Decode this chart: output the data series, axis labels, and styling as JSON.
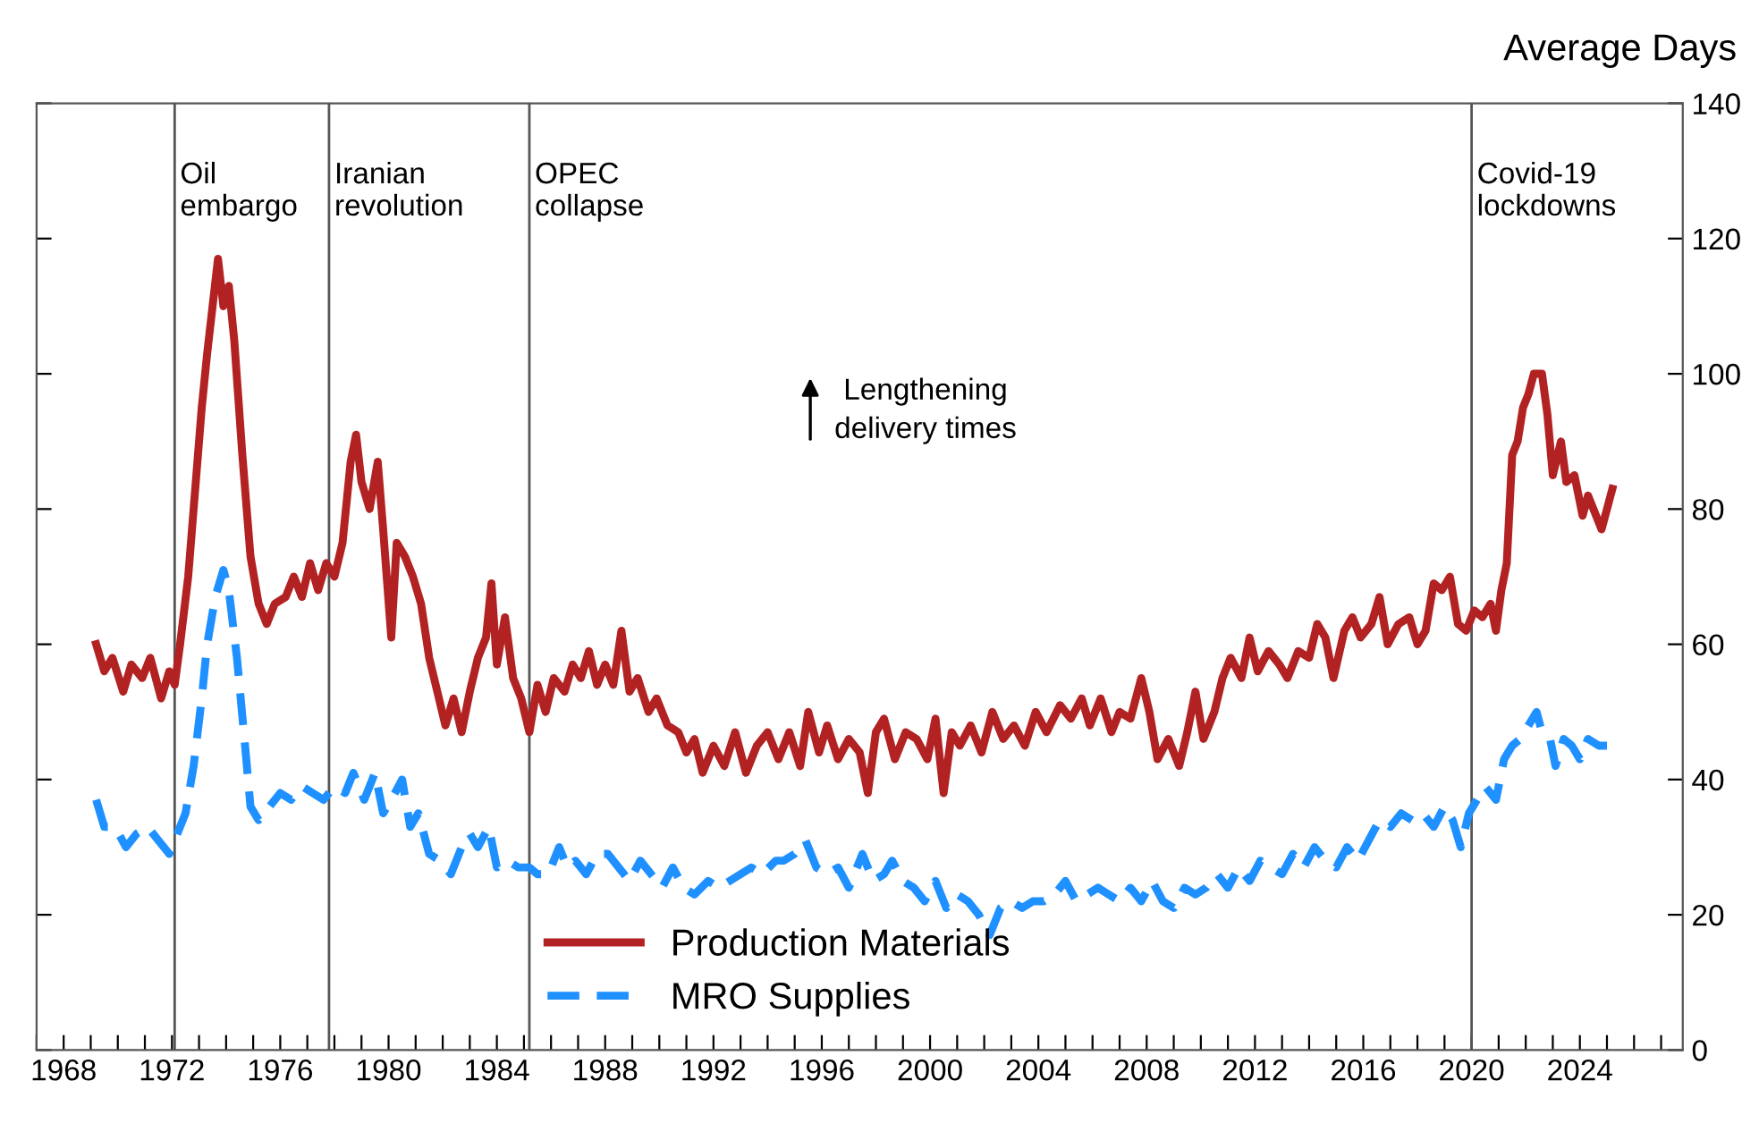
{
  "chart_data": {
    "type": "line",
    "ylabel": "Average Days",
    "xlim": [
      1967,
      2027.8
    ],
    "xticks": [
      {
        "value": 1967,
        "label": null
      },
      1968,
      {
        "value": 1969,
        "label": null
      },
      {
        "value": 1970,
        "label": null
      },
      {
        "value": 1971,
        "label": null
      },
      1972,
      {
        "value": 1973,
        "label": null
      },
      {
        "value": 1974,
        "label": null
      },
      {
        "value": 1975,
        "label": null
      },
      1976,
      {
        "value": 1977,
        "label": null
      },
      {
        "value": 1978,
        "label": null
      },
      {
        "value": 1979,
        "label": null
      },
      1980,
      {
        "value": 1981,
        "label": null
      },
      {
        "value": 1982,
        "label": null
      },
      {
        "value": 1983,
        "label": null
      },
      1984,
      {
        "value": 1985,
        "label": null
      },
      {
        "value": 1986,
        "label": null
      },
      {
        "value": 1987,
        "label": null
      },
      1988,
      {
        "value": 1989,
        "label": null
      },
      {
        "value": 1990,
        "label": null
      },
      {
        "value": 1991,
        "label": null
      },
      1992,
      {
        "value": 1993,
        "label": null
      },
      {
        "value": 1994,
        "label": null
      },
      {
        "value": 1995,
        "label": null
      },
      1996,
      {
        "value": 1997,
        "label": null
      },
      {
        "value": 1998,
        "label": null
      },
      {
        "value": 1999,
        "label": null
      },
      2000,
      {
        "value": 2001,
        "label": null
      },
      {
        "value": 2002,
        "label": null
      },
      {
        "value": 2003,
        "label": null
      },
      2004,
      {
        "value": 2005,
        "label": null
      },
      {
        "value": 2006,
        "label": null
      },
      {
        "value": 2007,
        "label": null
      },
      2008,
      {
        "value": 2009,
        "label": null
      },
      {
        "value": 2010,
        "label": null
      },
      {
        "value": 2011,
        "label": null
      },
      2012,
      {
        "value": 2013,
        "label": null
      },
      {
        "value": 2014,
        "label": null
      },
      {
        "value": 2015,
        "label": null
      },
      2016,
      {
        "value": 2017,
        "label": null
      },
      {
        "value": 2018,
        "label": null
      },
      {
        "value": 2019,
        "label": null
      },
      2020,
      {
        "value": 2021,
        "label": null
      },
      {
        "value": 2022,
        "label": null
      },
      {
        "value": 2023,
        "label": null
      },
      2024,
      {
        "value": 2025,
        "label": null
      },
      {
        "value": 2026,
        "label": null
      },
      {
        "value": 2027,
        "label": null
      }
    ],
    "ylim": [
      0,
      140
    ],
    "yticks": [
      0,
      20,
      40,
      60,
      80,
      100,
      120,
      140
    ],
    "grid": false,
    "legend": "bottom",
    "marker": "none",
    "annotations": [
      "Lengthening\ndelivery times"
    ],
    "ref_lines": [
      {
        "axis": "x",
        "value": 1972.1,
        "label": "Oil\nembargo",
        "color": "#555555"
      },
      {
        "axis": "x",
        "value": 1977.8,
        "label": "Iranian\nrevolution",
        "color": "#555555"
      },
      {
        "axis": "x",
        "value": 1985.2,
        "label": "OPEC\ncollapse",
        "color": "#555555"
      },
      {
        "axis": "x",
        "value": 2020.0,
        "label": "Covid-19\nlockdowns",
        "color": "#555555"
      }
    ],
    "series": [
      {
        "name": "Production Materials",
        "color": "#b22222",
        "line_style": "solid",
        "x": [
          1969.2,
          1969.5,
          1969.8,
          1970.2,
          1970.5,
          1970.9,
          1971.2,
          1971.6,
          1971.9,
          1972.1,
          1972.3,
          1972.6,
          1972.9,
          1973.1,
          1973.3,
          1973.5,
          1973.7,
          1973.9,
          1974.1,
          1974.3,
          1974.6,
          1974.9,
          1975.2,
          1975.5,
          1975.8,
          1976.2,
          1976.5,
          1976.8,
          1977.1,
          1977.4,
          1977.7,
          1978.0,
          1978.3,
          1978.6,
          1978.8,
          1979.0,
          1979.3,
          1979.6,
          1979.8,
          1980.1,
          1980.3,
          1980.6,
          1980.9,
          1981.2,
          1981.5,
          1981.8,
          1982.1,
          1982.4,
          1982.7,
          1983.0,
          1983.3,
          1983.6,
          1983.8,
          1984.0,
          1984.3,
          1984.6,
          1984.9,
          1985.2,
          1985.5,
          1985.8,
          1986.1,
          1986.5,
          1986.8,
          1987.1,
          1987.4,
          1987.7,
          1988.0,
          1988.3,
          1988.6,
          1988.9,
          1989.2,
          1989.6,
          1989.9,
          1990.3,
          1990.7,
          1991.0,
          1991.3,
          1991.6,
          1992.0,
          1992.4,
          1992.8,
          1993.2,
          1993.6,
          1994.0,
          1994.4,
          1994.8,
          1995.2,
          1995.5,
          1995.9,
          1996.2,
          1996.6,
          1997.0,
          1997.4,
          1997.7,
          1998.0,
          1998.3,
          1998.7,
          1999.1,
          1999.5,
          1999.9,
          2000.2,
          2000.5,
          2000.8,
          2001.1,
          2001.5,
          2001.9,
          2002.3,
          2002.7,
          2003.1,
          2003.5,
          2003.9,
          2004.3,
          2004.8,
          2005.2,
          2005.6,
          2005.9,
          2006.3,
          2006.7,
          2007.0,
          2007.4,
          2007.8,
          2008.1,
          2008.4,
          2008.8,
          2009.2,
          2009.5,
          2009.8,
          2010.1,
          2010.5,
          2010.8,
          2011.1,
          2011.5,
          2011.8,
          2012.1,
          2012.5,
          2012.9,
          2013.2,
          2013.6,
          2014.0,
          2014.3,
          2014.6,
          2014.9,
          2015.3,
          2015.6,
          2015.9,
          2016.3,
          2016.6,
          2016.9,
          2017.3,
          2017.7,
          2018.0,
          2018.3,
          2018.6,
          2018.9,
          2019.2,
          2019.5,
          2019.8,
          2020.1,
          2020.4,
          2020.7,
          2020.9,
          2021.1,
          2021.3,
          2021.5,
          2021.7,
          2021.9,
          2022.1,
          2022.3,
          2022.6,
          2022.8,
          2023.0,
          2023.3,
          2023.5,
          2023.8,
          2024.1,
          2024.3,
          2024.6,
          2024.8,
          2025.0,
          2025.2
        ],
        "values": [
          60,
          56,
          58,
          53,
          57,
          55,
          58,
          52,
          56,
          54,
          60,
          70,
          85,
          95,
          103,
          110,
          117,
          110,
          113,
          105,
          88,
          73,
          66,
          63,
          66,
          67,
          70,
          67,
          72,
          68,
          72,
          70,
          75,
          87,
          91,
          84,
          80,
          87,
          77,
          61,
          75,
          73,
          70,
          66,
          58,
          53,
          48,
          52,
          47,
          53,
          58,
          61,
          69,
          57,
          64,
          55,
          52,
          47,
          54,
          50,
          55,
          53,
          57,
          55,
          59,
          54,
          57,
          54,
          62,
          53,
          55,
          50,
          52,
          48,
          47,
          44,
          46,
          41,
          45,
          42,
          47,
          41,
          45,
          47,
          43,
          47,
          42,
          50,
          44,
          48,
          43,
          46,
          44,
          38,
          47,
          49,
          43,
          47,
          46,
          43,
          49,
          38,
          47,
          45,
          48,
          44,
          50,
          46,
          48,
          45,
          50,
          47,
          51,
          49,
          52,
          48,
          52,
          47,
          50,
          49,
          55,
          50,
          43,
          46,
          42,
          47,
          53,
          46,
          50,
          55,
          58,
          55,
          61,
          56,
          59,
          57,
          55,
          59,
          58,
          63,
          61,
          55,
          62,
          64,
          61,
          63,
          67,
          60,
          63,
          64,
          60,
          62,
          69,
          68,
          70,
          63,
          62,
          65,
          64,
          66,
          62,
          68,
          72,
          88,
          90,
          95,
          97,
          100,
          100,
          94,
          85,
          90,
          84,
          85,
          79,
          82,
          79,
          77,
          80,
          83
        ]
      },
      {
        "name": "MRO Supplies",
        "color": "#1e90ff",
        "line_style": "dashed",
        "x": [
          1969.2,
          1969.5,
          1969.9,
          1970.3,
          1970.7,
          1971.1,
          1971.5,
          1971.9,
          1972.2,
          1972.5,
          1972.8,
          1973.1,
          1973.3,
          1973.6,
          1973.9,
          1974.1,
          1974.4,
          1974.7,
          1974.9,
          1975.2,
          1975.6,
          1976.0,
          1976.4,
          1976.8,
          1977.2,
          1977.6,
          1978.0,
          1978.4,
          1978.7,
          1979.1,
          1979.5,
          1979.8,
          1980.1,
          1980.5,
          1980.8,
          1981.1,
          1981.5,
          1981.9,
          1982.3,
          1982.7,
          1983.0,
          1983.3,
          1983.7,
          1984.0,
          1984.4,
          1984.8,
          1985.2,
          1985.5,
          1985.9,
          1986.3,
          1986.6,
          1986.9,
          1987.3,
          1987.7,
          1988.1,
          1988.5,
          1988.9,
          1989.3,
          1989.7,
          1990.1,
          1990.5,
          1990.9,
          1991.3,
          1991.8,
          1992.2,
          1992.6,
          1993.0,
          1993.4,
          1993.8,
          1994.3,
          1994.6,
          1995.0,
          1995.4,
          1995.8,
          1996.2,
          1996.6,
          1997.0,
          1997.5,
          1997.9,
          1998.3,
          1998.6,
          1999.0,
          1999.4,
          1999.8,
          2000.2,
          2000.6,
          2001.0,
          2001.4,
          2001.8,
          2002.2,
          2002.6,
          2003.0,
          2003.4,
          2003.8,
          2004.2,
          2004.6,
          2005.0,
          2005.4,
          2005.8,
          2006.2,
          2006.6,
          2007.0,
          2007.4,
          2007.8,
          2008.2,
          2008.6,
          2009.0,
          2009.4,
          2009.8,
          2010.2,
          2010.6,
          2011.0,
          2011.4,
          2011.8,
          2012.2,
          2012.6,
          2013.0,
          2013.4,
          2013.8,
          2014.2,
          2014.6,
          2015.0,
          2015.4,
          2015.8,
          2016.2,
          2016.6,
          2017.0,
          2017.4,
          2017.8,
          2018.2,
          2018.6,
          2019.0,
          2019.3,
          2019.6,
          2019.9,
          2020.2,
          2020.5,
          2020.9,
          2021.2,
          2021.5,
          2021.8,
          2022.1,
          2022.4,
          2022.6,
          2022.9,
          2023.1,
          2023.4,
          2023.7,
          2024.0,
          2024.3,
          2024.7,
          2025.0
        ],
        "values": [
          37,
          33,
          33,
          30,
          32,
          33,
          31,
          29,
          32,
          35,
          42,
          52,
          60,
          67,
          71,
          68,
          58,
          45,
          36,
          34,
          36,
          38,
          37,
          39,
          38,
          37,
          39,
          38,
          41,
          37,
          41,
          35,
          37,
          40,
          33,
          35,
          29,
          28,
          26,
          30,
          32,
          30,
          33,
          27,
          28,
          27,
          27,
          26,
          26,
          30,
          27,
          28,
          26,
          29,
          29,
          27,
          25,
          28,
          26,
          24,
          27,
          24,
          23,
          25,
          24,
          25,
          26,
          27,
          26,
          28,
          28,
          29,
          31,
          27,
          26,
          27,
          24,
          29,
          25,
          26,
          28,
          25,
          24,
          22,
          25,
          21,
          23,
          22,
          20,
          17,
          21,
          22,
          21,
          22,
          22,
          23,
          25,
          22,
          23,
          24,
          23,
          22,
          24,
          22,
          25,
          22,
          21,
          24,
          23,
          24,
          26,
          24,
          27,
          25,
          28,
          27,
          26,
          29,
          27,
          30,
          28,
          27,
          30,
          28,
          31,
          34,
          33,
          35,
          34,
          35,
          33,
          36,
          34,
          30,
          35,
          37,
          39,
          37,
          43,
          45,
          46,
          48,
          50,
          47,
          46,
          42,
          46,
          45,
          43,
          46,
          45,
          45
        ]
      }
    ]
  }
}
